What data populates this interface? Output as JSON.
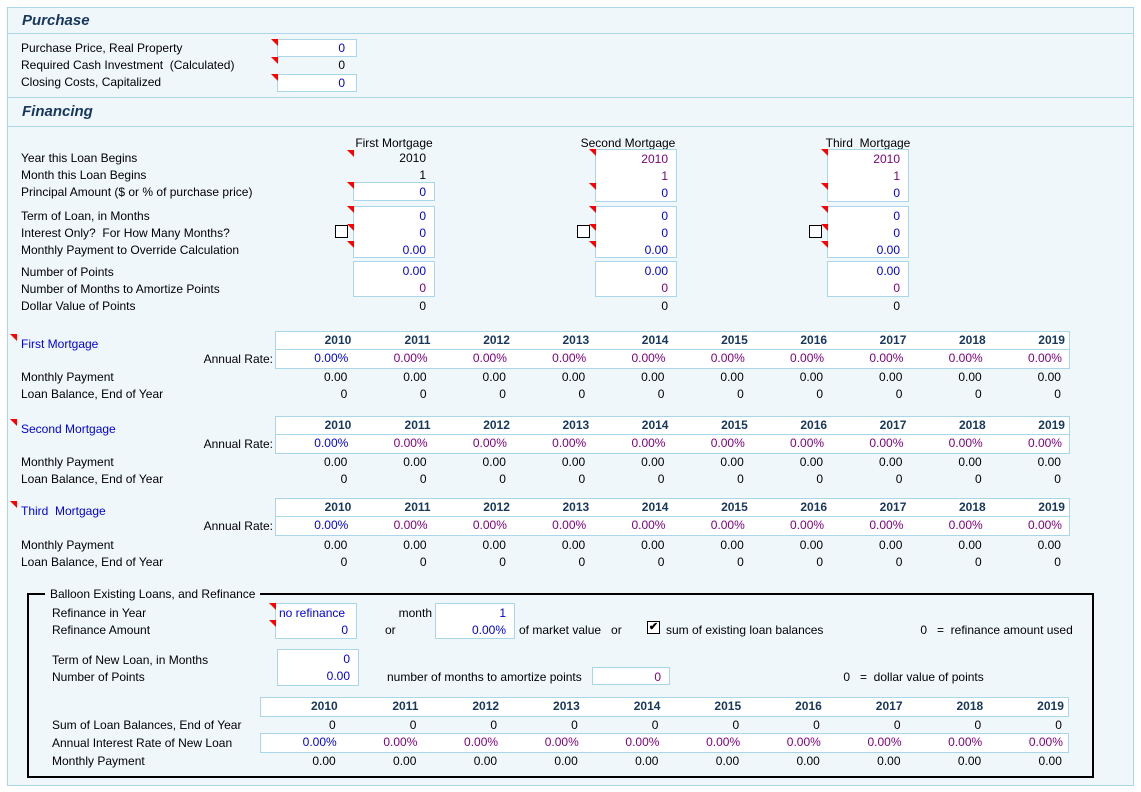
{
  "purchase": {
    "title": "Purchase",
    "rows": [
      {
        "label": "Purchase Price, Real Property",
        "value": "0"
      },
      {
        "label": "Required Cash Investment  (Calculated)",
        "value": "0"
      },
      {
        "label": "Closing Costs, Capitalized",
        "value": "0"
      }
    ]
  },
  "financing": {
    "title": "Financing",
    "row_labels": {
      "year": "Year this Loan Begins",
      "month": "Month this Loan Begins",
      "principal": "Principal Amount ($ or % of purchase price)",
      "term": "Term of Loan, in Months",
      "interest_only": "Interest Only?  For How Many Months?",
      "override": "Monthly Payment to Override Calculation",
      "points": "Number of Points",
      "amortize": "Number of Months to Amortize Points",
      "dollar_value": "Dollar Value of Points"
    },
    "mortgages": [
      {
        "name": "First Mortgage",
        "year": "2010",
        "month": "1",
        "principal": "0",
        "term": "0",
        "interest_only_months": "0",
        "override_payment": "0.00",
        "points": "0.00",
        "amortize_months": "0",
        "dollar_value": "0"
      },
      {
        "name": "Second Mortgage",
        "year": "2010",
        "month": "1",
        "principal": "0",
        "term": "0",
        "interest_only_months": "0",
        "override_payment": "0.00",
        "points": "0.00",
        "amortize_months": "0",
        "dollar_value": "0"
      },
      {
        "name": "Third  Mortgage",
        "year": "2010",
        "month": "1",
        "principal": "0",
        "term": "0",
        "interest_only_months": "0",
        "override_payment": "0.00",
        "points": "0.00",
        "amortize_months": "0",
        "dollar_value": "0"
      }
    ]
  },
  "rate_tables": {
    "years": [
      "2010",
      "2011",
      "2012",
      "2013",
      "2014",
      "2015",
      "2016",
      "2017",
      "2018",
      "2019"
    ],
    "rate_label": "Annual Rate:",
    "monthly_label": "Monthly Payment",
    "balance_label": "Loan Balance, End of Year",
    "tables": [
      {
        "title": "First Mortgage",
        "annual_rate": [
          "0.00%",
          "0.00%",
          "0.00%",
          "0.00%",
          "0.00%",
          "0.00%",
          "0.00%",
          "0.00%",
          "0.00%",
          "0.00%"
        ],
        "monthly_payment": [
          "0.00",
          "0.00",
          "0.00",
          "0.00",
          "0.00",
          "0.00",
          "0.00",
          "0.00",
          "0.00",
          "0.00"
        ],
        "loan_balance": [
          "0",
          "0",
          "0",
          "0",
          "0",
          "0",
          "0",
          "0",
          "0",
          "0"
        ]
      },
      {
        "title": "Second Mortgage",
        "annual_rate": [
          "0.00%",
          "0.00%",
          "0.00%",
          "0.00%",
          "0.00%",
          "0.00%",
          "0.00%",
          "0.00%",
          "0.00%",
          "0.00%"
        ],
        "monthly_payment": [
          "0.00",
          "0.00",
          "0.00",
          "0.00",
          "0.00",
          "0.00",
          "0.00",
          "0.00",
          "0.00",
          "0.00"
        ],
        "loan_balance": [
          "0",
          "0",
          "0",
          "0",
          "0",
          "0",
          "0",
          "0",
          "0",
          "0"
        ]
      },
      {
        "title": "Third  Mortgage",
        "annual_rate": [
          "0.00%",
          "0.00%",
          "0.00%",
          "0.00%",
          "0.00%",
          "0.00%",
          "0.00%",
          "0.00%",
          "0.00%",
          "0.00%"
        ],
        "monthly_payment": [
          "0.00",
          "0.00",
          "0.00",
          "0.00",
          "0.00",
          "0.00",
          "0.00",
          "0.00",
          "0.00",
          "0.00"
        ],
        "loan_balance": [
          "0",
          "0",
          "0",
          "0",
          "0",
          "0",
          "0",
          "0",
          "0",
          "0"
        ]
      }
    ]
  },
  "refinance": {
    "legend": "Balloon Existing Loans, and Refinance",
    "refinance_in_year_label": "Refinance in Year",
    "refinance_in_year": "no refinance",
    "month_label": "month",
    "month": "1",
    "refinance_amount_label": "Refinance Amount",
    "refinance_amount": "0",
    "or_label": "or",
    "percent_of_market": "0.00%",
    "of_market_value_label": "of market value   or",
    "sum_checkbox_label": "sum of existing loan balances",
    "refi_note_value": "0",
    "refi_note_text": "=  refinance amount used",
    "term_label": "Term of New Loan, in Months",
    "term": "0",
    "points_label": "Number of Points",
    "points": "0.00",
    "amortize_label": "number of months to amortize points",
    "amortize_months": "0",
    "points_note_value": "0",
    "points_note_text": "=  dollar value of points",
    "table": {
      "years": [
        "2010",
        "2011",
        "2012",
        "2013",
        "2014",
        "2015",
        "2016",
        "2017",
        "2018",
        "2019"
      ],
      "balances_label": "Sum of Loan Balances, End of Year",
      "rate_label": "Annual Interest Rate of New Loan",
      "payment_label": "Monthly Payment",
      "balances": [
        "0",
        "0",
        "0",
        "0",
        "0",
        "0",
        "0",
        "0",
        "0",
        "0"
      ],
      "rates": [
        "0.00%",
        "0.00%",
        "0.00%",
        "0.00%",
        "0.00%",
        "0.00%",
        "0.00%",
        "0.00%",
        "0.00%",
        "0.00%"
      ],
      "payments": [
        "0.00",
        "0.00",
        "0.00",
        "0.00",
        "0.00",
        "0.00",
        "0.00",
        "0.00",
        "0.00",
        "0.00"
      ]
    }
  },
  "colors": {
    "panel_bg": "#eff7fb",
    "border_light_blue": "#aad6ea",
    "navy": "#17375d",
    "input_blue": "#0000e0",
    "calc_purple": "#800080",
    "marker_red": "#ff0000"
  }
}
